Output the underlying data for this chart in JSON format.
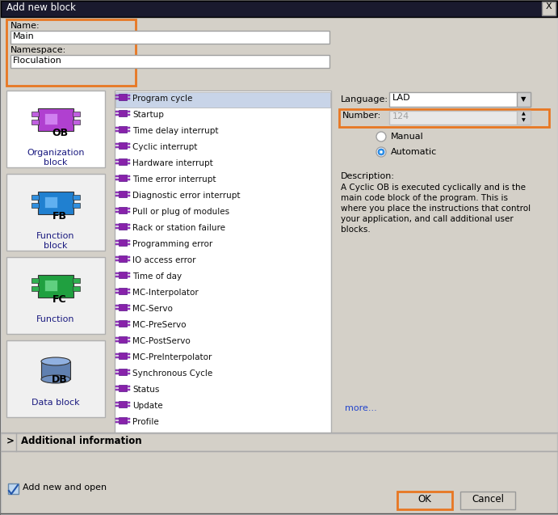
{
  "title": "Add new block",
  "bg_color": "#d4d0c8",
  "white": "#ffffff",
  "orange": "#e87722",
  "name_label": "Name:",
  "name_value": "Main",
  "namespace_label": "Namespace:",
  "namespace_value": "Floculation",
  "language_label": "Language:",
  "language_value": "LAD",
  "number_label": "Number:",
  "number_value": "124",
  "manual_label": "Manual",
  "automatic_label": "Automatic",
  "description_title": "Description:",
  "description_text": "A Cyclic OB is executed cyclically and is the\nmain code block of the program. This is\nwhere you place the instructions that control\nyour application, and call additional user\nblocks.",
  "more_link": "more...",
  "additional_info": "Additional information",
  "add_new_open": "Add new and open",
  "ok_label": "OK",
  "cancel_label": "Cancel",
  "block_types": [
    {
      "label": "Organization\nblock",
      "short": "OB",
      "main_color": "#b040d0",
      "side_color": "#c060e0",
      "light_color": "#d080f0"
    },
    {
      "label": "Function\nblock",
      "short": "FB",
      "main_color": "#2080d0",
      "side_color": "#3090e0",
      "light_color": "#60b0f0"
    },
    {
      "label": "Function",
      "short": "FC",
      "main_color": "#20a040",
      "side_color": "#30b050",
      "light_color": "#60d080"
    },
    {
      "label": "Data block",
      "short": "DB",
      "main_color": "#6080b0",
      "side_color": "#7090c0",
      "light_color": "#90b0e0"
    }
  ],
  "program_list": [
    "Program cycle",
    "Startup",
    "Time delay interrupt",
    "Cyclic interrupt",
    "Hardware interrupt",
    "Time error interrupt",
    "Diagnostic error interrupt",
    "Pull or plug of modules",
    "Rack or station failure",
    "Programming error",
    "IO access error",
    "Time of day",
    "MC-Interpolator",
    "MC-Servo",
    "MC-PreServo",
    "MC-PostServo",
    "MC-PreInterpolator",
    "Synchronous Cycle",
    "Status",
    "Update",
    "Profile"
  ]
}
